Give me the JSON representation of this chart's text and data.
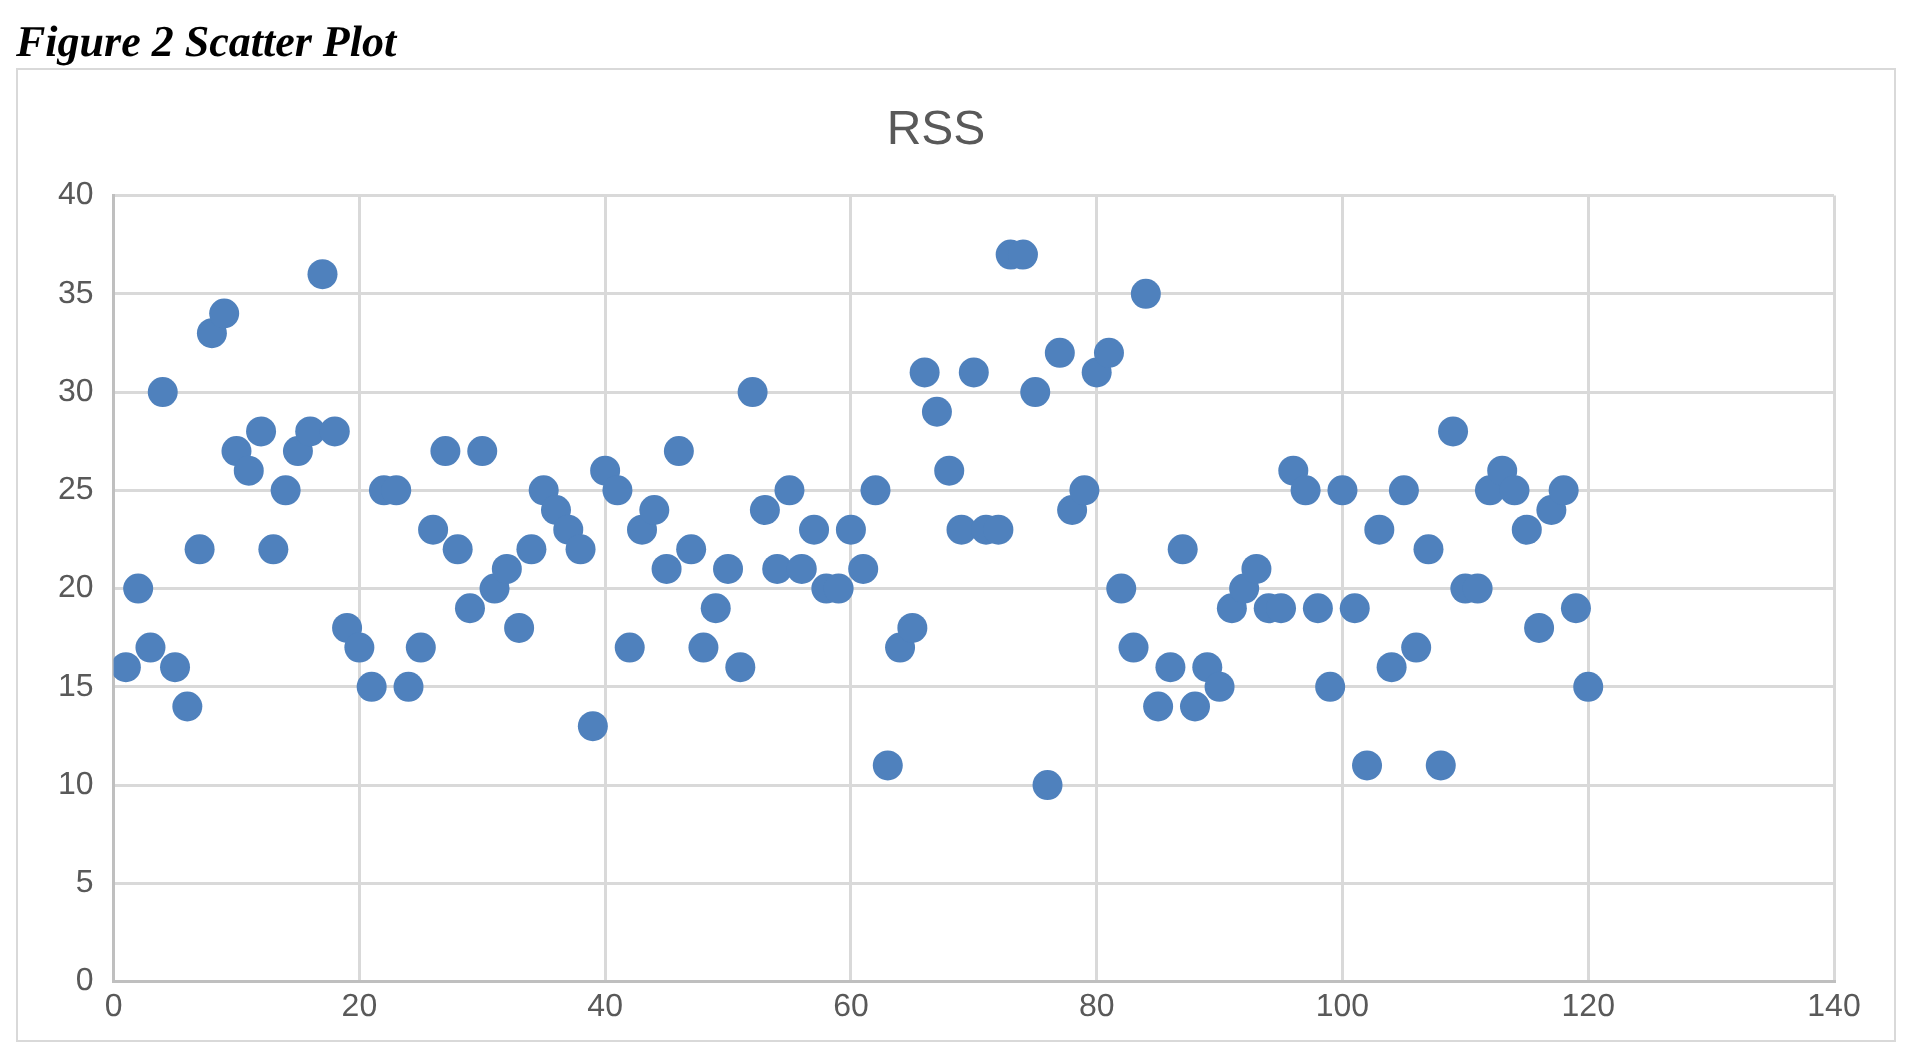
{
  "chart_data": {
    "type": "scatter",
    "title": "RSS",
    "annotations": [
      "Figure 2 Scatter Plot"
    ],
    "x": [
      1,
      2,
      3,
      4,
      5,
      6,
      7,
      8,
      9,
      10,
      11,
      12,
      13,
      14,
      15,
      16,
      17,
      18,
      19,
      20,
      21,
      22,
      23,
      24,
      25,
      26,
      27,
      28,
      29,
      30,
      31,
      32,
      33,
      34,
      35,
      36,
      37,
      38,
      39,
      40,
      41,
      42,
      43,
      44,
      45,
      46,
      47,
      48,
      49,
      50,
      51,
      52,
      53,
      54,
      55,
      56,
      57,
      58,
      59,
      60,
      61,
      62,
      63,
      64,
      65,
      66,
      67,
      68,
      69,
      70,
      71,
      72,
      73,
      74,
      75,
      76,
      77,
      78,
      79,
      80,
      81,
      82,
      83,
      84,
      85,
      86,
      87,
      88,
      89,
      90,
      91,
      92,
      93,
      94,
      95,
      96,
      97,
      98,
      99,
      100,
      101,
      102,
      103,
      104,
      105,
      106,
      107,
      108,
      109,
      110,
      111,
      112,
      113,
      114,
      115,
      116,
      117,
      118,
      119,
      120
    ],
    "series": [
      {
        "color": "#4f81bd",
        "values": [
          16,
          20,
          17,
          30,
          16,
          14,
          22,
          33,
          34,
          27,
          26,
          28,
          22,
          25,
          27,
          28,
          36,
          28,
          18,
          17,
          15,
          25,
          25,
          15,
          17,
          23,
          27,
          22,
          19,
          27,
          20,
          21,
          18,
          22,
          25,
          24,
          23,
          22,
          13,
          26,
          25,
          17,
          23,
          24,
          21,
          27,
          22,
          17,
          19,
          21,
          16,
          30,
          24,
          21,
          25,
          21,
          23,
          20,
          20,
          23,
          21,
          25,
          11,
          17,
          18,
          31,
          29,
          26,
          23,
          31,
          23,
          23,
          37,
          37,
          30,
          10,
          32,
          24,
          25,
          31,
          32,
          20,
          17,
          35,
          14,
          16,
          22,
          14,
          16,
          15,
          19,
          20,
          21,
          19,
          19,
          26,
          25,
          19,
          15,
          25,
          19,
          11,
          23,
          16,
          25,
          17,
          22,
          11,
          28,
          20,
          20,
          25,
          26,
          25,
          23,
          18,
          24,
          25,
          19,
          15
        ]
      }
    ],
    "xlim": [
      0,
      140
    ],
    "xticks": [
      0,
      20,
      40,
      60,
      80,
      100,
      120,
      140
    ],
    "ylim": [
      0,
      40
    ],
    "yticks": [
      0,
      5,
      10,
      15,
      20,
      25,
      30,
      35,
      40
    ],
    "grid": true,
    "marker": "circle",
    "legend": false
  }
}
